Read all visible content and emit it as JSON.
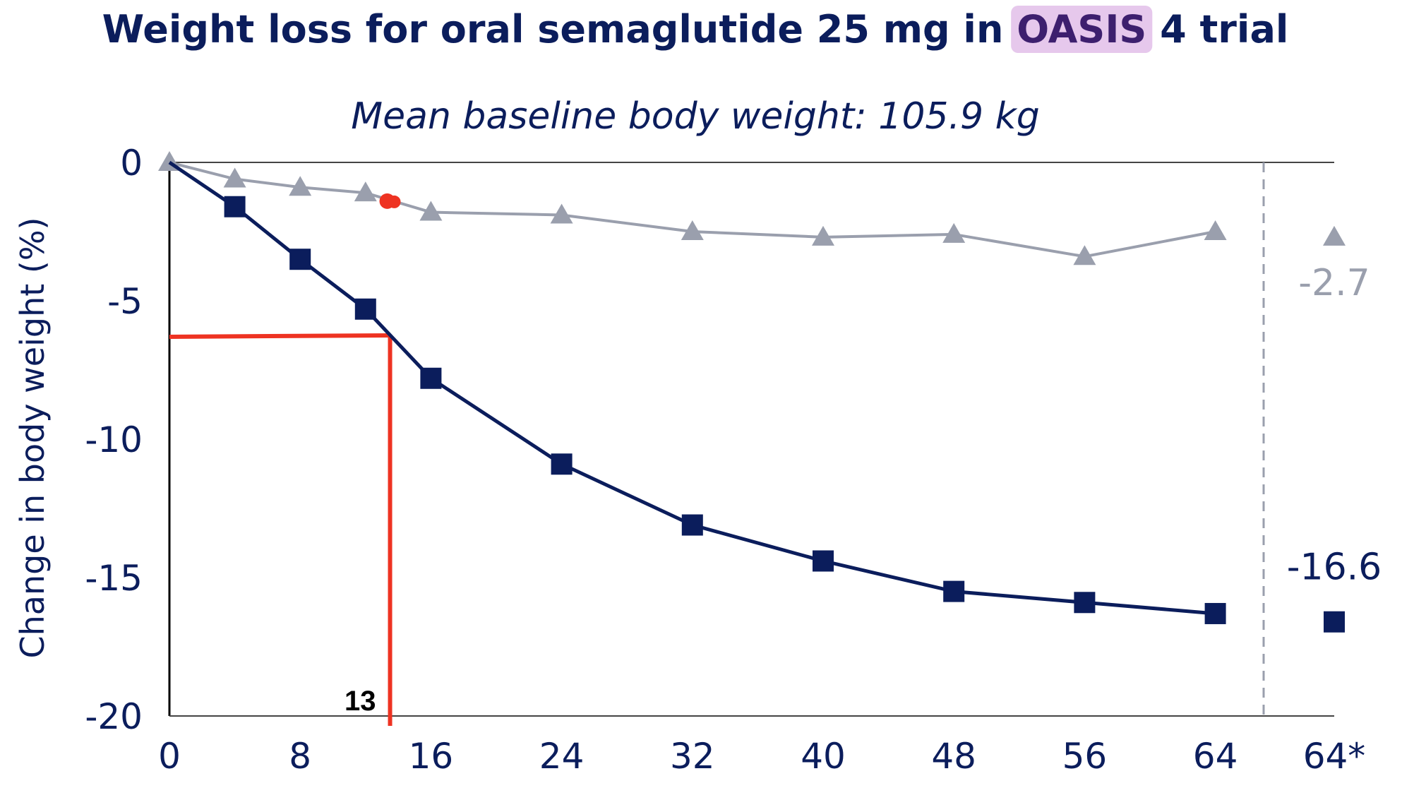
{
  "chart_data": {
    "type": "line",
    "title_parts": {
      "before": "Weight loss for oral semaglutide 25 mg in ",
      "highlight": "OASIS",
      "after": " 4 trial"
    },
    "subtitle": "Mean baseline body weight: 105.9 kg",
    "ylabel": "Change in body weight (%)",
    "xlabel": "",
    "ylim": [
      -20,
      0
    ],
    "yticks": [
      "0",
      "-5",
      "-10",
      "-15",
      "-20"
    ],
    "xticks": [
      "0",
      "8",
      "16",
      "24",
      "32",
      "40",
      "48",
      "56",
      "64",
      "64*"
    ],
    "grid": false,
    "series": [
      {
        "key": "placebo",
        "color": "#9a9fad",
        "marker": "triangle",
        "x": [
          0,
          4,
          8,
          12,
          16,
          24,
          32,
          40,
          48,
          56,
          64
        ],
        "values": [
          0,
          -0.6,
          -0.9,
          -1.1,
          -1.8,
          -1.9,
          -2.5,
          -2.7,
          -2.6,
          -3.4,
          -2.5
        ],
        "final_label": "-2.7",
        "final_value": -2.7
      },
      {
        "key": "semaglutide",
        "color": "#0b1d5c",
        "marker": "square",
        "x": [
          0,
          4,
          8,
          12,
          16,
          24,
          32,
          40,
          48,
          56,
          64
        ],
        "values": [
          0,
          -1.6,
          -3.5,
          -5.3,
          -7.8,
          -10.9,
          -13.1,
          -14.4,
          -15.5,
          -15.9,
          -16.3
        ],
        "final_label": "-16.6",
        "final_value": -16.6
      }
    ],
    "annotations": {
      "marker_label": "13",
      "marker_x": 13.5,
      "marker_y": -6.3,
      "dot_x": 13.5,
      "dot_y": -1.4,
      "color": "#ee3322",
      "highlight_color": "#e6c8ec"
    }
  }
}
